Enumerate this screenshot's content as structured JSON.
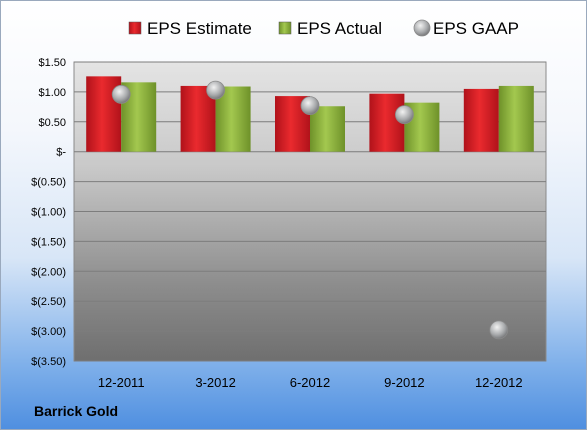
{
  "chart_data": {
    "type": "bar",
    "categories": [
      "12-2011",
      "3-2012",
      "6-2012",
      "9-2012",
      "12-2012"
    ],
    "series": [
      {
        "name": "EPS Estimate",
        "type": "bar",
        "color": "#d7191c",
        "values": [
          1.26,
          1.1,
          0.93,
          0.97,
          1.05
        ]
      },
      {
        "name": "EPS Actual",
        "type": "bar",
        "color": "#8db33c",
        "values": [
          1.16,
          1.09,
          0.76,
          0.82,
          1.1
        ]
      },
      {
        "name": "EPS GAAP",
        "type": "scatter",
        "color": "#a9abad",
        "values": [
          0.96,
          1.03,
          0.77,
          0.62,
          -2.98
        ]
      }
    ],
    "y_ticks": [
      1.5,
      1.0,
      0.5,
      0,
      -0.5,
      -1.0,
      -1.5,
      -2.0,
      -2.5,
      -3.0,
      -3.5
    ],
    "y_tick_labels": [
      "$1.50",
      "$1.00",
      "$0.50",
      "$-",
      "$(0.50)",
      "$(1.00)",
      "$(1.50)",
      "$(2.00)",
      "$(2.50)",
      "$(3.00)",
      "$(3.50)"
    ],
    "ylim": [
      -3.5,
      1.5
    ],
    "grid": true,
    "legend_position": "top"
  },
  "company": "Barrick Gold"
}
